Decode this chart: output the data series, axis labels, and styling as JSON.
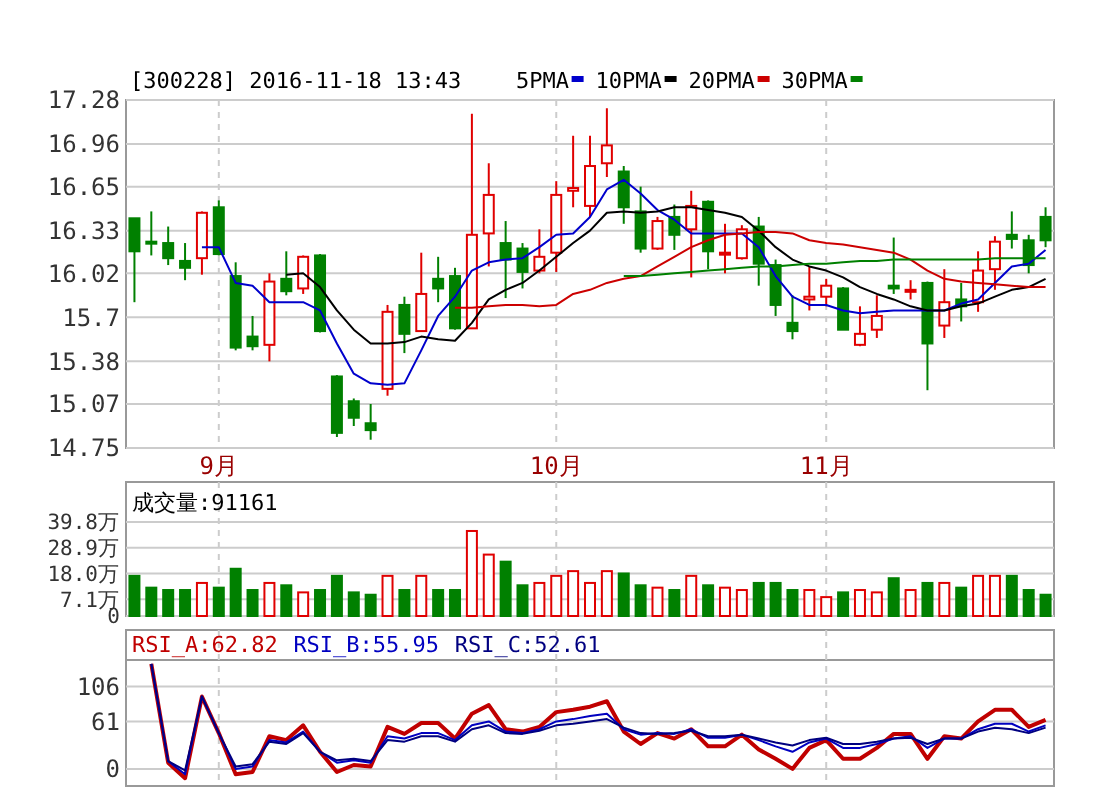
{
  "chart_data": [
    {
      "type": "candlestick",
      "title": "[300228] 2016-11-18 13:43",
      "legend": "top",
      "grid": true,
      "categories": [
        null,
        null,
        null,
        null,
        null,
        "9月",
        null,
        null,
        null,
        null,
        null,
        null,
        null,
        null,
        null,
        null,
        null,
        null,
        null,
        null,
        null,
        null,
        null,
        null,
        null,
        "10月",
        null,
        null,
        null,
        null,
        null,
        null,
        null,
        null,
        null,
        null,
        null,
        null,
        null,
        null,
        null,
        "11月",
        null,
        null,
        null,
        null,
        null,
        null,
        null,
        null,
        null,
        null,
        null,
        null,
        null
      ],
      "ylim": [
        14.75,
        17.28
      ],
      "yticks": [
        14.75,
        15.07,
        15.38,
        15.7,
        16.02,
        16.33,
        16.65,
        16.96,
        17.28
      ],
      "ohlc": [
        [
          16.42,
          16.42,
          15.81,
          16.18
        ],
        [
          16.25,
          16.47,
          16.15,
          16.24
        ],
        [
          16.24,
          16.36,
          16.08,
          16.13
        ],
        [
          16.11,
          16.24,
          15.97,
          16.06
        ],
        [
          16.13,
          16.47,
          16.01,
          16.46
        ],
        [
          16.5,
          16.55,
          16.15,
          16.16
        ],
        [
          16.0,
          16.1,
          15.46,
          15.48
        ],
        [
          15.56,
          15.71,
          15.46,
          15.49
        ],
        [
          15.5,
          16.02,
          15.38,
          15.96
        ],
        [
          15.98,
          16.18,
          15.86,
          15.89
        ],
        [
          15.91,
          16.15,
          15.87,
          16.14
        ],
        [
          16.15,
          16.16,
          15.59,
          15.6
        ],
        [
          15.27,
          15.28,
          14.83,
          14.86
        ],
        [
          15.09,
          15.11,
          14.91,
          14.97
        ],
        [
          14.93,
          15.07,
          14.81,
          14.88
        ],
        [
          15.18,
          15.79,
          15.13,
          15.74
        ],
        [
          15.79,
          15.85,
          15.44,
          15.58
        ],
        [
          15.6,
          16.17,
          15.6,
          15.87
        ],
        [
          15.98,
          16.14,
          15.81,
          15.91
        ],
        [
          16.0,
          16.06,
          15.61,
          15.62
        ],
        [
          15.62,
          17.18,
          15.62,
          16.3
        ],
        [
          16.31,
          16.82,
          16.07,
          16.59
        ],
        [
          16.24,
          16.4,
          15.84,
          16.12
        ],
        [
          16.2,
          16.24,
          15.91,
          16.03
        ],
        [
          16.04,
          16.34,
          16.02,
          16.14
        ],
        [
          16.17,
          16.69,
          16.03,
          16.59
        ],
        [
          16.62,
          17.02,
          16.5,
          16.64
        ],
        [
          16.51,
          17.02,
          16.43,
          16.8
        ],
        [
          16.82,
          17.22,
          16.72,
          16.95
        ],
        [
          16.76,
          16.8,
          16.38,
          16.5
        ],
        [
          16.47,
          16.65,
          16.17,
          16.2
        ],
        [
          16.2,
          16.43,
          16.19,
          16.4
        ],
        [
          16.43,
          16.52,
          16.19,
          16.3
        ],
        [
          16.34,
          16.62,
          15.99,
          16.51
        ],
        [
          16.54,
          16.55,
          16.05,
          16.18
        ],
        [
          16.16,
          16.38,
          16.02,
          16.17
        ],
        [
          16.13,
          16.37,
          16.12,
          16.34
        ],
        [
          16.36,
          16.43,
          15.93,
          16.09
        ],
        [
          16.08,
          16.12,
          15.71,
          15.79
        ],
        [
          15.66,
          15.86,
          15.54,
          15.6
        ],
        [
          15.83,
          16.07,
          15.75,
          15.85
        ],
        [
          15.85,
          15.98,
          15.78,
          15.93
        ],
        [
          15.91,
          15.92,
          15.61,
          15.61
        ],
        [
          15.5,
          15.78,
          15.49,
          15.58
        ],
        [
          15.61,
          15.86,
          15.55,
          15.71
        ],
        [
          15.93,
          16.28,
          15.87,
          15.91
        ],
        [
          15.89,
          15.97,
          15.83,
          15.9
        ],
        [
          15.95,
          15.96,
          15.17,
          15.51
        ],
        [
          15.64,
          16.05,
          15.55,
          15.81
        ],
        [
          15.83,
          15.95,
          15.67,
          15.78
        ],
        [
          15.81,
          16.18,
          15.74,
          16.04
        ],
        [
          16.05,
          16.29,
          15.9,
          16.25
        ],
        [
          16.3,
          16.47,
          16.2,
          16.27
        ],
        [
          16.26,
          16.3,
          16.02,
          16.08
        ],
        [
          16.43,
          16.5,
          16.21,
          16.26
        ]
      ],
      "colors": [
        "#008000",
        "#008000",
        "#008000",
        "#008000",
        "#e00000",
        "#008000",
        "#008000",
        "#008000",
        "#e00000",
        "#008000",
        "#e00000",
        "#008000",
        "#008000",
        "#008000",
        "#008000",
        "#e00000",
        "#008000",
        "#e00000",
        "#008000",
        "#008000",
        "#e00000",
        "#e00000",
        "#008000",
        "#008000",
        "#e00000",
        "#e00000",
        "#e00000",
        "#e00000",
        "#e00000",
        "#008000",
        "#008000",
        "#e00000",
        "#008000",
        "#e00000",
        "#008000",
        "#e00000",
        "#e00000",
        "#008000",
        "#008000",
        "#008000",
        "#e00000",
        "#e00000",
        "#008000",
        "#e00000",
        "#e00000",
        "#008000",
        "#e00000",
        "#008000",
        "#e00000",
        "#008000",
        "#e00000",
        "#e00000",
        "#008000",
        "#008000",
        "#008000"
      ],
      "series": [
        {
          "type": "line",
          "name": "5PMA",
          "color": "#0000cc",
          "values": [
            null,
            null,
            null,
            null,
            16.21,
            16.21,
            15.95,
            15.93,
            15.81,
            15.81,
            15.81,
            15.75,
            15.51,
            15.29,
            15.22,
            15.21,
            15.22,
            15.46,
            15.71,
            15.85,
            16.04,
            16.1,
            16.12,
            16.13,
            16.21,
            16.3,
            16.31,
            16.43,
            16.63,
            16.7,
            16.6,
            16.48,
            16.41,
            16.31,
            16.31,
            16.31,
            16.31,
            16.21,
            16.0,
            15.85,
            15.79,
            15.79,
            15.75,
            15.73,
            15.74,
            15.75,
            15.75,
            15.75,
            15.75,
            15.8,
            15.83,
            15.95,
            16.07,
            16.09,
            16.19
          ]
        },
        {
          "type": "line",
          "name": "10PMA",
          "color": "#000000",
          "values": [
            null,
            null,
            null,
            null,
            null,
            null,
            null,
            null,
            null,
            16.01,
            16.02,
            15.92,
            15.75,
            15.61,
            15.51,
            15.51,
            15.52,
            15.56,
            15.54,
            15.53,
            15.66,
            15.83,
            15.9,
            15.95,
            16.04,
            16.14,
            16.24,
            16.33,
            16.46,
            16.47,
            16.46,
            16.47,
            16.5,
            16.5,
            16.48,
            16.46,
            16.43,
            16.33,
            16.21,
            16.12,
            16.07,
            16.04,
            15.99,
            15.92,
            15.87,
            15.83,
            15.78,
            15.75,
            15.75,
            15.78,
            15.8,
            15.85,
            15.9,
            15.92,
            15.98
          ]
        },
        {
          "type": "line",
          "name": "20PMA",
          "color": "#cc0000",
          "values": [
            null,
            null,
            null,
            null,
            null,
            null,
            null,
            null,
            null,
            null,
            null,
            null,
            null,
            null,
            null,
            null,
            null,
            null,
            null,
            15.77,
            15.77,
            15.78,
            15.79,
            15.79,
            15.78,
            15.79,
            15.87,
            15.9,
            15.95,
            15.98,
            16.0,
            16.07,
            16.14,
            16.21,
            16.26,
            16.3,
            16.31,
            16.32,
            16.32,
            16.31,
            16.26,
            16.24,
            16.23,
            16.21,
            16.19,
            16.17,
            16.12,
            16.04,
            15.98,
            15.96,
            15.95,
            15.94,
            15.93,
            15.92,
            15.92
          ]
        },
        {
          "type": "line",
          "name": "30PMA",
          "color": "#008000",
          "values": [
            null,
            null,
            null,
            null,
            null,
            null,
            null,
            null,
            null,
            null,
            null,
            null,
            null,
            null,
            null,
            null,
            null,
            null,
            null,
            null,
            null,
            null,
            null,
            null,
            null,
            null,
            null,
            null,
            null,
            16.0,
            16.0,
            16.01,
            16.02,
            16.03,
            16.04,
            16.05,
            16.06,
            16.07,
            16.07,
            16.08,
            16.09,
            16.09,
            16.1,
            16.11,
            16.11,
            16.12,
            16.12,
            16.12,
            16.12,
            16.12,
            16.12,
            16.13,
            16.13,
            16.13,
            16.13
          ]
        }
      ]
    },
    {
      "type": "bar",
      "tick_labels": "y",
      "grid": true,
      "annotations": [
        "成交量:91161"
      ],
      "categories": [
        null,
        null,
        null,
        null,
        null,
        null,
        null,
        null,
        null,
        null,
        null,
        null,
        null,
        null,
        null,
        null,
        null,
        null,
        null,
        null,
        null,
        null,
        null,
        null,
        null,
        null,
        null,
        null,
        null,
        null,
        null,
        null,
        null,
        null,
        null,
        null,
        null,
        null,
        null,
        null,
        null,
        null,
        null,
        null,
        null,
        null,
        null,
        null,
        null,
        null,
        null,
        null,
        null,
        null,
        null
      ],
      "ylim": [
        0,
        39.8
      ],
      "yticks": [
        0,
        {
          "value": 7.1,
          "label": "7.1万"
        },
        {
          "value": 18.0,
          "label": "18.0万"
        },
        {
          "value": 28.9,
          "label": "28.9万"
        },
        {
          "value": 39.8,
          "label": "39.8万"
        }
      ],
      "values": [
        17,
        12,
        11,
        11,
        14,
        12,
        20,
        11,
        14,
        13,
        10,
        11,
        17,
        10,
        9,
        17,
        11,
        17,
        11,
        11,
        36,
        26,
        23,
        13,
        14,
        17,
        19,
        14,
        19,
        18,
        13,
        12,
        11,
        17,
        13,
        12,
        11,
        14,
        14,
        11,
        11,
        8,
        10,
        11,
        10,
        16,
        11,
        14,
        14,
        12,
        17,
        17,
        17,
        11,
        9
      ],
      "colors": [
        "#008000",
        "#008000",
        "#008000",
        "#008000",
        "#e00000",
        "#008000",
        "#008000",
        "#008000",
        "#e00000",
        "#008000",
        "#e00000",
        "#008000",
        "#008000",
        "#008000",
        "#008000",
        "#e00000",
        "#008000",
        "#e00000",
        "#008000",
        "#008000",
        "#e00000",
        "#e00000",
        "#008000",
        "#008000",
        "#e00000",
        "#e00000",
        "#e00000",
        "#e00000",
        "#e00000",
        "#008000",
        "#008000",
        "#e00000",
        "#008000",
        "#e00000",
        "#008000",
        "#e00000",
        "#e00000",
        "#008000",
        "#008000",
        "#008000",
        "#e00000",
        "#e00000",
        "#008000",
        "#e00000",
        "#e00000",
        "#008000",
        "#e00000",
        "#008000",
        "#e00000",
        "#008000",
        "#e00000",
        "#e00000",
        "#008000",
        "#008000",
        "#008000"
      ]
    },
    {
      "type": "line",
      "tick_labels": "y",
      "grid": true,
      "legend": "top",
      "categories": [
        null,
        null,
        null,
        null,
        null,
        null,
        null,
        null,
        null,
        null,
        null,
        null,
        null,
        null,
        null,
        null,
        null,
        null,
        null,
        null,
        null,
        null,
        null,
        null,
        null,
        null,
        null,
        null,
        null,
        null,
        null,
        null,
        null,
        null,
        null,
        null,
        null,
        null,
        null,
        null,
        null,
        null,
        null,
        null,
        null,
        null,
        null,
        null,
        null,
        null,
        null,
        null,
        null,
        null,
        null
      ],
      "ylim": [
        -22,
        140
      ],
      "yticks": [
        0,
        61,
        106
      ],
      "series": [
        {
          "name": "RSI_A:62.82",
          "color": "#c00000",
          "values": [
            null,
            135,
            8,
            -12,
            93,
            46,
            -7,
            -4,
            42,
            37,
            56,
            22,
            -4,
            5,
            3,
            54,
            45,
            59,
            59,
            39,
            71,
            82,
            51,
            48,
            54,
            73,
            76,
            80,
            87,
            48,
            32,
            46,
            39,
            51,
            29,
            29,
            44,
            25,
            13,
            0,
            27,
            37,
            13,
            13,
            27,
            45,
            45,
            13,
            42,
            39,
            61,
            76,
            76,
            54,
            63
          ]
        },
        {
          "name": "RSI_B:55.95",
          "color": "#0000c0",
          "values": [
            null,
            135,
            10,
            -7,
            93,
            46,
            0,
            3,
            37,
            34,
            48,
            22,
            8,
            11,
            8,
            42,
            39,
            46,
            46,
            37,
            56,
            61,
            48,
            46,
            51,
            61,
            64,
            68,
            71,
            51,
            44,
            46,
            45,
            51,
            40,
            40,
            44,
            37,
            29,
            22,
            34,
            39,
            27,
            27,
            32,
            39,
            42,
            27,
            39,
            39,
            51,
            58,
            58,
            48,
            56
          ]
        },
        {
          "name": "RSI_C:52.61",
          "color": "#000080",
          "values": [
            null,
            135,
            10,
            -2,
            93,
            46,
            3,
            6,
            35,
            32,
            46,
            22,
            11,
            13,
            10,
            37,
            35,
            42,
            42,
            35,
            51,
            56,
            46,
            45,
            49,
            56,
            58,
            61,
            64,
            53,
            46,
            45,
            46,
            49,
            42,
            42,
            44,
            39,
            34,
            30,
            37,
            40,
            32,
            32,
            35,
            39,
            40,
            32,
            39,
            39,
            48,
            53,
            51,
            46,
            53
          ]
        }
      ]
    }
  ]
}
